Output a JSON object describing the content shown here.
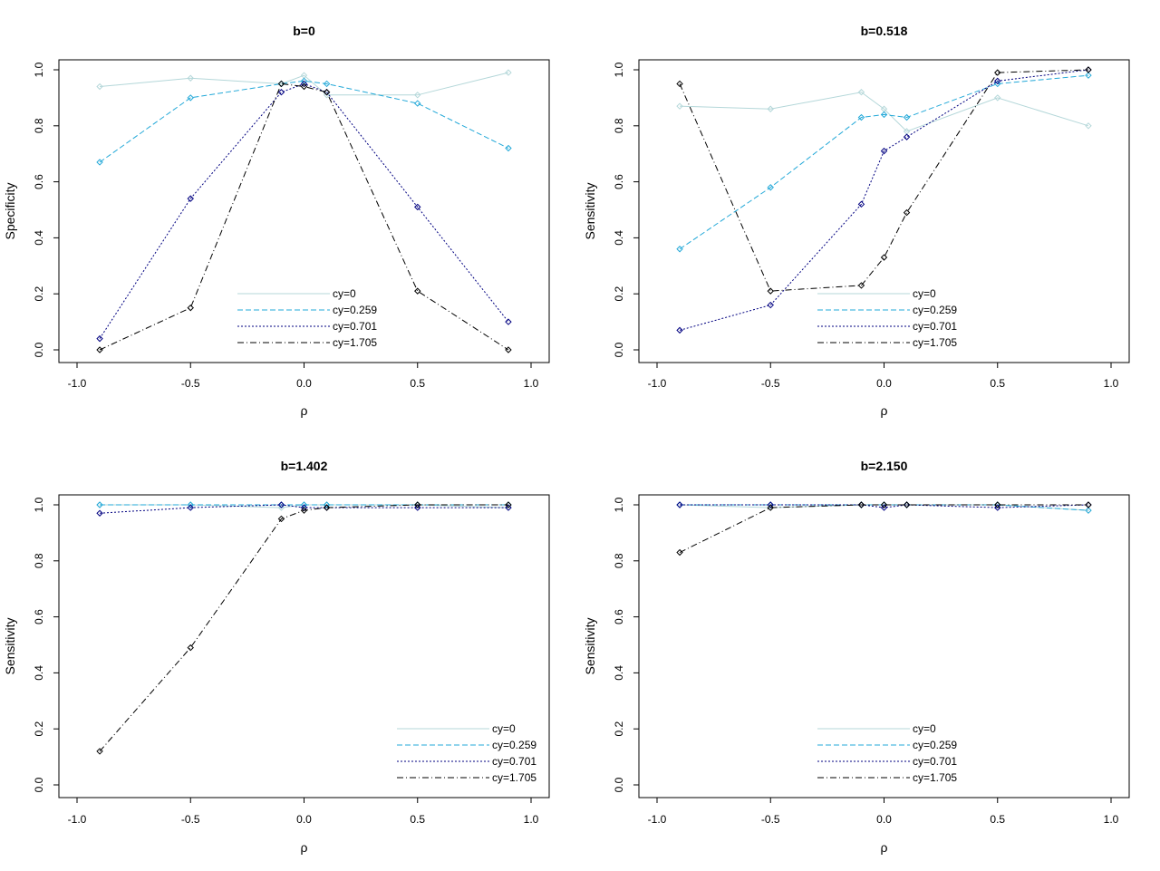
{
  "colors": {
    "cy0": "#b4d7d9",
    "cy0259": "#22a8d8",
    "cy0701": "#000080",
    "cy1705": "#000000"
  },
  "chart_data": [
    {
      "type": "line",
      "title": "b=0",
      "xlabel": "ρ",
      "ylabel": "Specificity",
      "xlim": [
        -1.0,
        1.0
      ],
      "ylim": [
        0.0,
        1.0
      ],
      "xticks": [
        "-1.0",
        "-0.5",
        "0.0",
        "0.5",
        "1.0"
      ],
      "yticks": [
        "0.0",
        "0.2",
        "0.4",
        "0.6",
        "0.8",
        "1.0"
      ],
      "legend_position": "bottom-right",
      "x": [
        -0.9,
        -0.5,
        -0.1,
        0.0,
        0.1,
        0.5,
        0.9
      ],
      "series": [
        {
          "name": "cy=0",
          "values": [
            0.94,
            0.97,
            0.95,
            0.98,
            0.91,
            0.91,
            0.99
          ]
        },
        {
          "name": "cy=0.259",
          "values": [
            0.67,
            0.9,
            0.95,
            0.96,
            0.95,
            0.88,
            0.72
          ]
        },
        {
          "name": "cy=0.701",
          "values": [
            0.04,
            0.54,
            0.92,
            0.95,
            0.92,
            0.51,
            0.1
          ]
        },
        {
          "name": "cy=1.705",
          "values": [
            0.0,
            0.15,
            0.95,
            0.94,
            0.92,
            0.21,
            0.0
          ]
        }
      ]
    },
    {
      "type": "line",
      "title": "b=0.518",
      "xlabel": "ρ",
      "ylabel": "Sensitivity",
      "xlim": [
        -1.0,
        1.0
      ],
      "ylim": [
        0.0,
        1.0
      ],
      "xticks": [
        "-1.0",
        "-0.5",
        "0.0",
        "0.5",
        "1.0"
      ],
      "yticks": [
        "0.0",
        "0.2",
        "0.4",
        "0.6",
        "0.8",
        "1.0"
      ],
      "legend_position": "bottom-right",
      "x": [
        -0.9,
        -0.5,
        -0.1,
        0.0,
        0.1,
        0.5,
        0.9
      ],
      "series": [
        {
          "name": "cy=0",
          "values": [
            0.87,
            0.86,
            0.92,
            0.86,
            0.78,
            0.9,
            0.8
          ]
        },
        {
          "name": "cy=0.259",
          "values": [
            0.36,
            0.58,
            0.83,
            0.84,
            0.83,
            0.95,
            0.98
          ]
        },
        {
          "name": "cy=0.701",
          "values": [
            0.07,
            0.16,
            0.52,
            0.71,
            0.76,
            0.96,
            1.0
          ]
        },
        {
          "name": "cy=1.705",
          "values": [
            0.95,
            0.21,
            0.23,
            0.33,
            0.49,
            0.99,
            1.0
          ]
        }
      ]
    },
    {
      "type": "line",
      "title": "b=1.402",
      "xlabel": "ρ",
      "ylabel": "Sensitivity",
      "xlim": [
        -1.0,
        1.0
      ],
      "ylim": [
        0.0,
        1.0
      ],
      "xticks": [
        "-1.0",
        "-0.5",
        "0.0",
        "0.5",
        "1.0"
      ],
      "yticks": [
        "0.0",
        "0.2",
        "0.4",
        "0.6",
        "0.8",
        "1.0"
      ],
      "legend_position": "bottom-right",
      "x": [
        -0.9,
        -0.5,
        -0.1,
        0.0,
        0.1,
        0.5,
        0.9
      ],
      "series": [
        {
          "name": "cy=0",
          "values": [
            1.0,
            1.0,
            0.99,
            1.0,
            1.0,
            1.0,
            0.99
          ]
        },
        {
          "name": "cy=0.259",
          "values": [
            1.0,
            1.0,
            1.0,
            1.0,
            1.0,
            1.0,
            1.0
          ]
        },
        {
          "name": "cy=0.701",
          "values": [
            0.97,
            0.99,
            1.0,
            0.99,
            0.99,
            0.99,
            0.99
          ]
        },
        {
          "name": "cy=1.705",
          "values": [
            0.12,
            0.49,
            0.95,
            0.98,
            0.99,
            1.0,
            1.0
          ]
        }
      ]
    },
    {
      "type": "line",
      "title": "b=2.150",
      "xlabel": "ρ",
      "ylabel": "Sensitivity",
      "xlim": [
        -1.0,
        1.0
      ],
      "ylim": [
        0.0,
        1.0
      ],
      "xticks": [
        "-1.0",
        "-0.5",
        "0.0",
        "0.5",
        "1.0"
      ],
      "yticks": [
        "0.0",
        "0.2",
        "0.4",
        "0.6",
        "0.8",
        "1.0"
      ],
      "legend_position": "bottom-right",
      "x": [
        -0.9,
        -0.5,
        -0.1,
        0.0,
        0.1,
        0.5,
        0.9
      ],
      "series": [
        {
          "name": "cy=0",
          "values": [
            1.0,
            0.99,
            1.0,
            1.0,
            1.0,
            1.0,
            0.98
          ]
        },
        {
          "name": "cy=0.259",
          "values": [
            1.0,
            1.0,
            1.0,
            1.0,
            1.0,
            1.0,
            0.98
          ]
        },
        {
          "name": "cy=0.701",
          "values": [
            1.0,
            1.0,
            1.0,
            0.99,
            1.0,
            0.99,
            1.0
          ]
        },
        {
          "name": "cy=1.705",
          "values": [
            0.83,
            0.99,
            1.0,
            1.0,
            1.0,
            1.0,
            1.0
          ]
        }
      ]
    }
  ]
}
